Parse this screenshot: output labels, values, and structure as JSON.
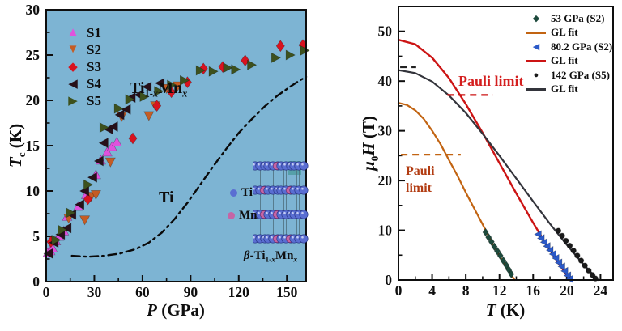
{
  "chart_data": [
    {
      "name": "tc-vs-pressure",
      "type": "scatter",
      "bg": "#7db4d3",
      "frame": [
        57,
        12,
        378,
        348
      ],
      "xlim": [
        0,
        162
      ],
      "ylim": [
        0,
        30
      ],
      "xticks": [
        0,
        30,
        60,
        90,
        120,
        150
      ],
      "xminor": [
        15,
        45,
        75,
        105,
        135
      ],
      "yticks": [
        0,
        5,
        10,
        15,
        20,
        25,
        30
      ],
      "yminor": [
        2.5,
        7.5,
        12.5,
        17.5,
        22.5,
        27.5
      ],
      "xlabel": {
        "i": "P",
        "r": " (GPa)"
      },
      "ylabel": {
        "i": "T",
        "sub": "c",
        "r": " (K)"
      },
      "title": {
        "t1": "Ti",
        "s1a": "1-",
        "s1b": "x",
        "t2": "Mn",
        "s2": "x"
      },
      "annotation_ti": "Ti",
      "legend": {
        "items": [
          {
            "label": "S1",
            "marker": "tri-up",
            "color": "#e052dd"
          },
          {
            "label": "S2",
            "marker": "tri-down",
            "color": "#c45c24"
          },
          {
            "label": "S3",
            "marker": "diamond",
            "color": "#d8131f"
          },
          {
            "label": "S4",
            "marker": "tri-left",
            "color": "#271019"
          },
          {
            "label": "S5",
            "marker": "tri-right",
            "color": "#3d511d"
          }
        ]
      },
      "series": [
        {
          "name": "Ti",
          "type": "line",
          "color": "#0a0a0a",
          "width": 2.4,
          "dash": "10 5 2.5 5",
          "points": [
            [
              16,
              2.85
            ],
            [
              26,
              2.75
            ],
            [
              36,
              2.85
            ],
            [
              46,
              3.1
            ],
            [
              56,
              3.6
            ],
            [
              64,
              4.3
            ],
            [
              72,
              5.4
            ],
            [
              80,
              6.9
            ],
            [
              88,
              8.7
            ],
            [
              96,
              10.7
            ],
            [
              104,
              12.7
            ],
            [
              112,
              14.6
            ],
            [
              120,
              16.4
            ],
            [
              128,
              17.9
            ],
            [
              136,
              19.3
            ],
            [
              144,
              20.5
            ],
            [
              152,
              21.5
            ],
            [
              158,
              22.2
            ],
            [
              162,
              22.6
            ]
          ]
        },
        {
          "name": "S1",
          "type": "scatter",
          "marker": "tri-up",
          "color": "#e052dd",
          "size": 6,
          "points": [
            [
              1,
              3.2
            ],
            [
              2.5,
              3.4
            ],
            [
              4,
              3.7
            ],
            [
              6,
              4.5
            ],
            [
              8,
              5.0
            ],
            [
              11,
              5.6
            ],
            [
              13,
              7.2
            ],
            [
              20,
              8.3
            ],
            [
              25,
              9.6
            ],
            [
              31,
              11.8
            ],
            [
              34,
              13.4
            ],
            [
              38,
              14.3
            ],
            [
              41,
              14.9
            ],
            [
              44,
              15.4
            ]
          ]
        },
        {
          "name": "S2",
          "type": "scatter",
          "marker": "tri-down",
          "color": "#c45c24",
          "size": 6,
          "points": [
            [
              14,
              7.0
            ],
            [
              24,
              6.8
            ],
            [
              28,
              9.4
            ],
            [
              31,
              9.6
            ],
            [
              40,
              13.2
            ],
            [
              47,
              18.2
            ],
            [
              64,
              18.3
            ],
            [
              68,
              19.4
            ],
            [
              75,
              21.3
            ],
            [
              82,
              21.6
            ]
          ]
        },
        {
          "name": "S3",
          "type": "scatter",
          "marker": "diamond",
          "color": "#d8131f",
          "size": 6,
          "points": [
            [
              3,
              4.4
            ],
            [
              26,
              9.1
            ],
            [
              54,
              15.8
            ],
            [
              69,
              19.4
            ],
            [
              78,
              20.9
            ],
            [
              88,
              22.0
            ],
            [
              98,
              23.5
            ],
            [
              110,
              23.7
            ],
            [
              124,
              24.4
            ],
            [
              146,
              26.0
            ],
            [
              160,
              26.1
            ]
          ]
        },
        {
          "name": "S4",
          "type": "scatter",
          "marker": "tri-left",
          "color": "#271019",
          "size": 6,
          "points": [
            [
              1.5,
              3.1
            ],
            [
              5,
              4.3
            ],
            [
              9,
              5.2
            ],
            [
              13,
              5.9
            ],
            [
              16,
              7.4
            ],
            [
              21,
              8.5
            ],
            [
              24,
              10.0
            ],
            [
              29,
              11.5
            ],
            [
              33,
              13.3
            ],
            [
              36,
              15.3
            ],
            [
              39,
              16.8
            ],
            [
              42,
              17.1
            ],
            [
              46,
              18.4
            ],
            [
              50,
              19.0
            ],
            [
              53,
              20.3
            ],
            [
              58,
              20.6
            ],
            [
              63,
              21.5
            ],
            [
              71,
              21.9
            ]
          ]
        },
        {
          "name": "S5",
          "type": "scatter",
          "marker": "tri-right",
          "color": "#3d511d",
          "size": 6,
          "points": [
            [
              6,
              4.6
            ],
            [
              10,
              5.7
            ],
            [
              15,
              7.6
            ],
            [
              26,
              10.7
            ],
            [
              36,
              17.0
            ],
            [
              45,
              19.1
            ],
            [
              52,
              20.1
            ],
            [
              61,
              20.4
            ],
            [
              70,
              21.0
            ],
            [
              78,
              21.7
            ],
            [
              86,
              22.2
            ],
            [
              96,
              23.3
            ],
            [
              104,
              23.2
            ],
            [
              113,
              23.6
            ],
            [
              118,
              23.4
            ],
            [
              128,
              23.9
            ],
            [
              143,
              24.7
            ],
            [
              152,
              25.0
            ],
            [
              161,
              25.5
            ]
          ]
        }
      ],
      "inset": {
        "ti": "Ti",
        "mn": "Mn",
        "ti_color": "#5a6ed2",
        "mn_color": "#c565a5",
        "formula": {
          "b": "β",
          "t1": "-Ti",
          "s1a": "1-",
          "s1b": "x",
          "t2": "Mn",
          "s2": "x"
        }
      }
    },
    {
      "name": "hc2-vs-temperature",
      "type": "line",
      "bg": "#ffffff",
      "frame": [
        492,
        8,
        757,
        346
      ],
      "xlim": [
        0,
        25.5
      ],
      "ylim": [
        0,
        55
      ],
      "xticks": [
        0,
        4,
        8,
        12,
        16,
        20,
        24
      ],
      "xminor": [
        2,
        6,
        10,
        14,
        18,
        22
      ],
      "yticks": [
        0,
        10,
        20,
        30,
        40,
        50
      ],
      "yminor": [
        5,
        15,
        25,
        35,
        45
      ],
      "xlabel": {
        "i": "T",
        "r": " (K)"
      },
      "ylabel": {
        "i1": "μ",
        "sub": "0",
        "i2": "H",
        "r": " (T)"
      },
      "pauli_upper": "Pauli limit",
      "pauli_lower": {
        "l1": "Pauli",
        "l2": "limit"
      },
      "legend": {
        "items": [
          {
            "label": "53 GPa (S2)",
            "marker": "diamond",
            "color": "#1d4a3c"
          },
          {
            "label": "GL fit",
            "marker": "line",
            "color": "#c26412"
          },
          {
            "label": "80.2 GPa (S2)",
            "marker": "tri-left",
            "color": "#2b59c8"
          },
          {
            "label": "GL fit",
            "marker": "line",
            "color": "#cc1414"
          },
          {
            "label": "142 GPa (S5)",
            "marker": "circle",
            "color": "#1a1a1a"
          },
          {
            "label": "GL fit",
            "marker": "line",
            "color": "#33343b"
          }
        ]
      },
      "series": [
        {
          "name": "GL fit 53 GPa",
          "type": "line",
          "color": "#c26412",
          "width": 2.2,
          "points": [
            [
              0,
              35.6
            ],
            [
              1,
              35.2
            ],
            [
              2,
              34.1
            ],
            [
              3,
              32.4
            ],
            [
              4,
              30.0
            ],
            [
              5,
              27.3
            ],
            [
              6,
              24.1
            ],
            [
              7,
              21.0
            ],
            [
              8,
              17.6
            ],
            [
              9,
              14.4
            ],
            [
              10,
              11.2
            ],
            [
              11,
              7.9
            ],
            [
              12,
              4.9
            ],
            [
              13,
              2.1
            ],
            [
              13.8,
              0
            ]
          ]
        },
        {
          "name": "GL fit 80.2 GPa",
          "type": "line",
          "color": "#cc1414",
          "width": 2.4,
          "points": [
            [
              0,
              48.3
            ],
            [
              2,
              47.4
            ],
            [
              4,
              44.7
            ],
            [
              6,
              40.6
            ],
            [
              8,
              35.4
            ],
            [
              10,
              29.6
            ],
            [
              12,
              23.5
            ],
            [
              14,
              17.4
            ],
            [
              16,
              11.5
            ],
            [
              17,
              8.7
            ],
            [
              18,
              6.0
            ],
            [
              19,
              3.4
            ],
            [
              20,
              1.0
            ],
            [
              20.4,
              0
            ]
          ]
        },
        {
          "name": "GL fit 142 GPa",
          "type": "line",
          "color": "#33343b",
          "width": 2.2,
          "points": [
            [
              0,
              42.2
            ],
            [
              2,
              41.6
            ],
            [
              4,
              39.9
            ],
            [
              6,
              37.1
            ],
            [
              8,
              33.6
            ],
            [
              10,
              29.4
            ],
            [
              12,
              25.0
            ],
            [
              14,
              20.4
            ],
            [
              16,
              15.8
            ],
            [
              18,
              11.3
            ],
            [
              20,
              7.1
            ],
            [
              22,
              3.1
            ],
            [
              23,
              1.3
            ],
            [
              23.7,
              0
            ]
          ]
        },
        {
          "name": "53 GPa (S2)",
          "type": "scatter",
          "marker": "diamond",
          "color": "#1d4a3c",
          "size": 4.2,
          "points": [
            [
              10.35,
              9.6
            ],
            [
              10.7,
              8.6
            ],
            [
              11.05,
              7.7
            ],
            [
              11.4,
              6.7
            ],
            [
              11.75,
              5.8
            ],
            [
              12.1,
              4.9
            ],
            [
              12.45,
              3.9
            ],
            [
              12.8,
              3.0
            ],
            [
              13.1,
              2.1
            ],
            [
              13.4,
              1.2
            ]
          ]
        },
        {
          "name": "80.2 GPa (S2)",
          "type": "scatter",
          "marker": "tri-left",
          "color": "#2b59c8",
          "size": 4.6,
          "points": [
            [
              16.6,
              9.2
            ],
            [
              16.95,
              8.4
            ],
            [
              17.3,
              7.6
            ],
            [
              17.65,
              6.8
            ],
            [
              18.0,
              6.0
            ],
            [
              18.35,
              5.2
            ],
            [
              18.7,
              4.4
            ],
            [
              19.05,
              3.5
            ],
            [
              19.4,
              2.7
            ],
            [
              19.75,
              1.8
            ],
            [
              20.1,
              0.9
            ],
            [
              20.35,
              0.2
            ]
          ]
        },
        {
          "name": "142 GPa (S5)",
          "type": "scatter",
          "marker": "circle",
          "color": "#1a1a1a",
          "size": 3.4,
          "points": [
            [
              19.0,
              9.9
            ],
            [
              19.45,
              8.9
            ],
            [
              19.9,
              7.9
            ],
            [
              20.35,
              6.9
            ],
            [
              20.8,
              5.9
            ],
            [
              21.25,
              4.9
            ],
            [
              21.7,
              3.9
            ],
            [
              22.15,
              2.9
            ],
            [
              22.6,
              1.9
            ],
            [
              23.05,
              1.0
            ],
            [
              23.4,
              0.3
            ]
          ]
        }
      ],
      "ref_lines": [
        {
          "name": "pauli-limit-142",
          "y": 42.8,
          "x1": 0.2,
          "x2": 2.1,
          "color": "#222222"
        },
        {
          "name": "pauli-limit-80",
          "y": 37.2,
          "x1": 5.8,
          "x2": 11.2,
          "color": "#cc1414"
        },
        {
          "name": "pauli-limit-53",
          "y": 25.2,
          "x1": 0.3,
          "x2": 7.4,
          "color": "#c26412"
        }
      ]
    }
  ]
}
